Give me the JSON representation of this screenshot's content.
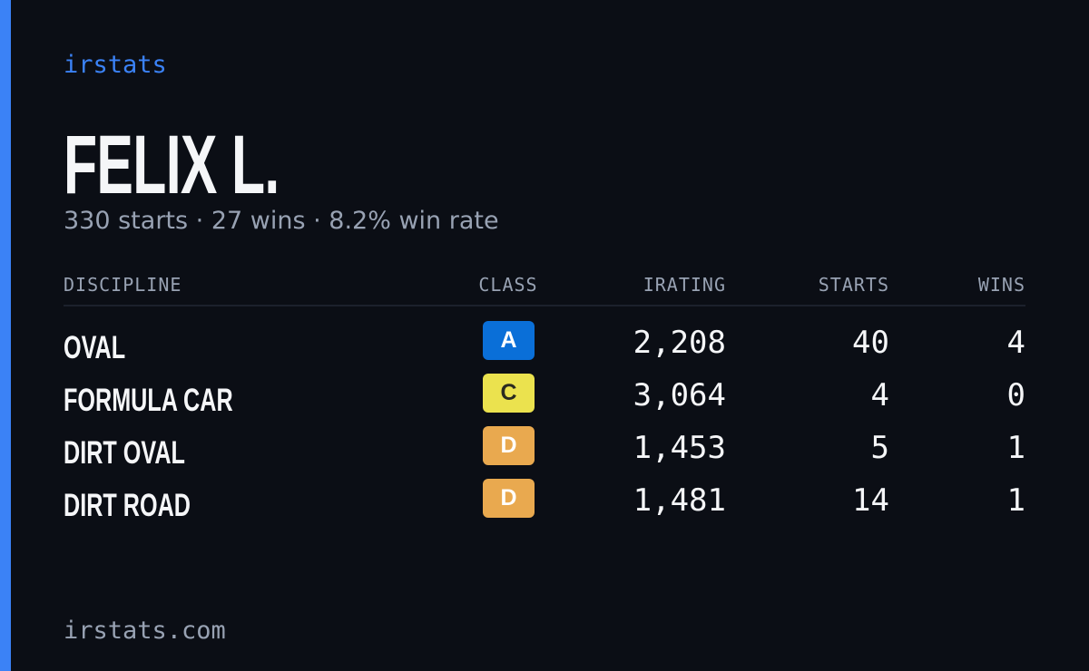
{
  "header": {
    "brand": "irstats",
    "name": "FELIX L.",
    "summary": "330 starts · 27 wins · 8.2% win rate"
  },
  "table": {
    "columns": [
      "DISCIPLINE",
      "CLASS",
      "IRATING",
      "STARTS",
      "WINS"
    ],
    "rows": [
      {
        "discipline": "OVAL",
        "class": "A",
        "class_color": "#0a6fd8",
        "class_text_color": "#ffffff",
        "irating": "2,208",
        "starts": "40",
        "wins": "4"
      },
      {
        "discipline": "FORMULA CAR",
        "class": "C",
        "class_color": "#ebe24e",
        "class_text_color": "#2a2a20",
        "irating": "3,064",
        "starts": "4",
        "wins": "0"
      },
      {
        "discipline": "DIRT OVAL",
        "class": "D",
        "class_color": "#e9a94f",
        "class_text_color": "#ffffff",
        "irating": "1,453",
        "starts": "5",
        "wins": "1"
      },
      {
        "discipline": "DIRT ROAD",
        "class": "D",
        "class_color": "#e9a94f",
        "class_text_color": "#ffffff",
        "irating": "1,481",
        "starts": "14",
        "wins": "1"
      }
    ]
  },
  "footer": {
    "url": "irstats.com"
  }
}
